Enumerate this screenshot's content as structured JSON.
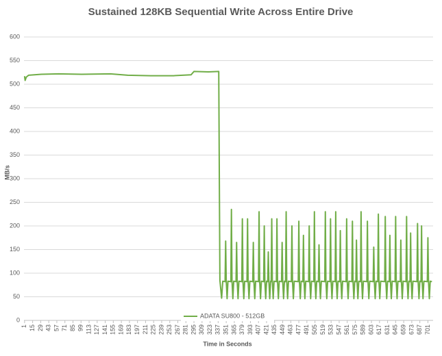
{
  "chart_data": {
    "type": "line",
    "title": "Sustained 128KB Sequential Write Across Entire Drive",
    "xlabel": "Time in Seconds",
    "ylabel": "MB/s",
    "legend": "bottom",
    "grid": true,
    "xlim": [
      0,
      710
    ],
    "ylim": [
      0,
      600
    ],
    "yticks": [
      0,
      50,
      100,
      150,
      200,
      250,
      300,
      350,
      400,
      450,
      500,
      550,
      600
    ],
    "xticks": [
      1,
      15,
      29,
      43,
      57,
      71,
      85,
      99,
      113,
      127,
      141,
      155,
      169,
      183,
      197,
      211,
      225,
      239,
      253,
      267,
      281,
      295,
      309,
      323,
      337,
      351,
      365,
      379,
      393,
      407,
      421,
      435,
      449,
      463,
      477,
      491,
      505,
      519,
      533,
      547,
      561,
      575,
      589,
      603,
      617,
      631,
      645,
      659,
      673,
      687,
      701
    ],
    "x": [
      1,
      2,
      4,
      8,
      30,
      60,
      100,
      150,
      180,
      220,
      260,
      290,
      295,
      320,
      338,
      340,
      343,
      345,
      349,
      350,
      351,
      352.5,
      354,
      359,
      360,
      361,
      362.5,
      364,
      368,
      369,
      370,
      371.5,
      373,
      378,
      379,
      380,
      381.5,
      383,
      387,
      388,
      389,
      390.5,
      392,
      397,
      398,
      399,
      400.5,
      402,
      407,
      408,
      409,
      410.5,
      412,
      416,
      417,
      418,
      419.5,
      421,
      423,
      424,
      425,
      426.5,
      428,
      429,
      430,
      431,
      432.5,
      434,
      438,
      439,
      440,
      441.5,
      443,
      447,
      448,
      449,
      450.5,
      452,
      454,
      455,
      456,
      457.5,
      459,
      464,
      465,
      466,
      467.5,
      469,
      476,
      477,
      478,
      479.5,
      481,
      484,
      485,
      486,
      487.5,
      489,
      494,
      495,
      496,
      497.5,
      499,
      503,
      504,
      505,
      506.5,
      508,
      511,
      512,
      513,
      514.5,
      516,
      522,
      523,
      524,
      525.5,
      527,
      531,
      532,
      533,
      534.5,
      536,
      540,
      541,
      542,
      543.5,
      545,
      548,
      549,
      550,
      551.5,
      553,
      559,
      560,
      561,
      562.5,
      564,
      569,
      570,
      571,
      572.5,
      574,
      576,
      577,
      578,
      579.5,
      581,
      584,
      585,
      586,
      587.5,
      589,
      595,
      596,
      597,
      598.5,
      600,
      606,
      607,
      608,
      609.5,
      611,
      614,
      615,
      616,
      617.5,
      619,
      626,
      627,
      628,
      629.5,
      631,
      634,
      635,
      636,
      637.5,
      639,
      644,
      645,
      646,
      647.5,
      649,
      653,
      654,
      655,
      656.5,
      658,
      663,
      664,
      665,
      666.5,
      668,
      670,
      671,
      672,
      673.5,
      675,
      682,
      683,
      684,
      685.5,
      687,
      689,
      690,
      691,
      692.5,
      694,
      700,
      701,
      702,
      703.5,
      705,
      708
    ],
    "series": [
      {
        "name": "ADATA SU800 - 512GB",
        "color": "#70ad47",
        "values": [
          517,
          508,
          515,
          519,
          521,
          522,
          521,
          522,
          519,
          518,
          518,
          520,
          527,
          526,
          527,
          85,
          47,
          83,
          82,
          168,
          84,
          46,
          83,
          82,
          235,
          84,
          46,
          83,
          82,
          165,
          84,
          46,
          83,
          82,
          215,
          84,
          46,
          83,
          82,
          215,
          84,
          46,
          83,
          82,
          165,
          84,
          46,
          83,
          82,
          230,
          84,
          46,
          83,
          82,
          200,
          84,
          46,
          83,
          82,
          145,
          84,
          46,
          83,
          82,
          215,
          84,
          46,
          83,
          82,
          215,
          84,
          46,
          83,
          82,
          165,
          84,
          46,
          83,
          82,
          230,
          84,
          46,
          83,
          82,
          200,
          84,
          46,
          83,
          82,
          210,
          84,
          46,
          83,
          82,
          180,
          84,
          46,
          83,
          82,
          200,
          84,
          46,
          83,
          82,
          230,
          84,
          46,
          83,
          82,
          160,
          84,
          46,
          83,
          82,
          230,
          84,
          46,
          83,
          82,
          215,
          84,
          46,
          83,
          82,
          230,
          84,
          46,
          83,
          82,
          190,
          84,
          46,
          83,
          82,
          215,
          84,
          46,
          83,
          82,
          210,
          84,
          46,
          83,
          82,
          170,
          84,
          46,
          83,
          82,
          230,
          84,
          46,
          83,
          82,
          210,
          84,
          46,
          83,
          82,
          155,
          84,
          46,
          83,
          82,
          225,
          84,
          46,
          83,
          82,
          220,
          84,
          46,
          83,
          82,
          180,
          84,
          46,
          83,
          82,
          220,
          84,
          46,
          83,
          82,
          170,
          84,
          46,
          83,
          82,
          220,
          84,
          46,
          83,
          82,
          185,
          84,
          46,
          83,
          82,
          205,
          84,
          46,
          83,
          82,
          200,
          84,
          46,
          83,
          82,
          175,
          84,
          46,
          83,
          82
        ]
      }
    ]
  }
}
